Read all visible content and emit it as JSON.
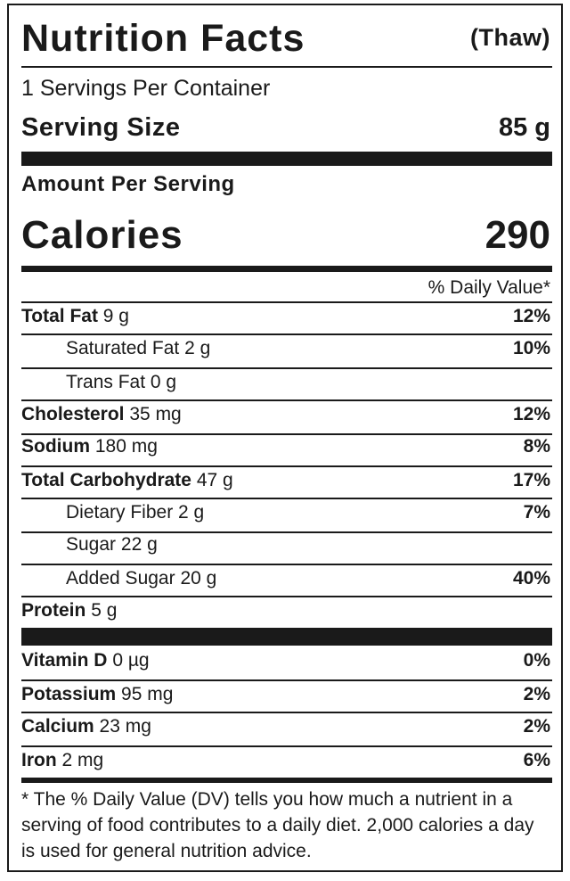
{
  "header": {
    "title": "Nutrition Facts",
    "qualifier": "(Thaw)"
  },
  "servings_per_container": "1 Servings Per Container",
  "serving_size": {
    "label": "Serving Size",
    "value": "85 g"
  },
  "amount_per_serving": "Amount Per Serving",
  "calories": {
    "label": "Calories",
    "value": "290"
  },
  "daily_value_header": "% Daily Value*",
  "nutrients": [
    {
      "name": "Total Fat",
      "amount": "9 g",
      "dv": "12%"
    },
    {
      "name": "Saturated Fat",
      "amount": "2 g",
      "dv": "10%"
    },
    {
      "name": "Trans Fat",
      "amount": "0 g",
      "dv": ""
    },
    {
      "name": "Cholesterol",
      "amount": "35 mg",
      "dv": "12%"
    },
    {
      "name": "Sodium",
      "amount": "180 mg",
      "dv": "8%"
    },
    {
      "name": "Total Carbohydrate",
      "amount": "47 g",
      "dv": "17%"
    },
    {
      "name": "Dietary Fiber",
      "amount": "2 g",
      "dv": "7%"
    },
    {
      "name": "Sugar",
      "amount": "22 g",
      "dv": ""
    },
    {
      "name": "Added Sugar",
      "amount": "20 g",
      "dv": "40%"
    },
    {
      "name": "Protein",
      "amount": "5 g",
      "dv": ""
    }
  ],
  "vitamins_minerals": [
    {
      "name": "Vitamin D",
      "amount": "0 µg",
      "dv": "0%"
    },
    {
      "name": "Potassium",
      "amount": "95 mg",
      "dv": "2%"
    },
    {
      "name": "Calcium",
      "amount": "23 mg",
      "dv": "2%"
    },
    {
      "name": "Iron",
      "amount": "2 mg",
      "dv": "6%"
    }
  ],
  "footnote": "* The % Daily Value (DV) tells you how much a nutrient in a serving of food contributes to a daily diet. 2,000 calories a day is used for general nutrition advice."
}
